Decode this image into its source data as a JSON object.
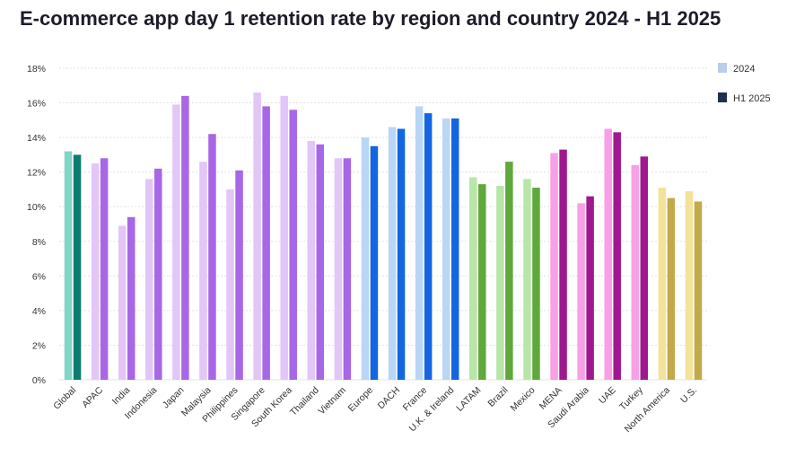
{
  "title": "E-commerce app day 1 retention rate by region and country 2024 - H1 2025",
  "chart_data": {
    "type": "bar",
    "title": "E-commerce app day 1 retention rate by region and country 2024 - H1 2025",
    "xlabel": "",
    "ylabel": "",
    "ylim": [
      0,
      18
    ],
    "yticks": [
      "0%",
      "2%",
      "4%",
      "6%",
      "8%",
      "10%",
      "12%",
      "14%",
      "16%",
      "18%"
    ],
    "grid": true,
    "legend_position": "top-right",
    "categories": [
      "Global",
      "APAC",
      "India",
      "Indonesia",
      "Japan",
      "Malaysia",
      "Philippines",
      "Singapore",
      "South Korea",
      "Thailand",
      "Vietnam",
      "Europe",
      "DACH",
      "France",
      "U.K. & Ireland",
      "LATAM",
      "Brazil",
      "Mexico",
      "MENA",
      "Saudi Arabia",
      "UAE",
      "Turkey",
      "North America",
      "U.S."
    ],
    "series": [
      {
        "name": "2024",
        "values": [
          13.2,
          12.5,
          8.9,
          11.6,
          15.9,
          12.6,
          11.0,
          16.6,
          16.4,
          13.8,
          12.8,
          14.0,
          14.6,
          15.8,
          15.1,
          11.7,
          11.2,
          11.6,
          13.1,
          10.2,
          14.5,
          12.4,
          11.1,
          10.9
        ]
      },
      {
        "name": "H1 2025",
        "values": [
          13.0,
          12.8,
          9.4,
          12.2,
          16.4,
          14.2,
          12.1,
          15.8,
          15.6,
          13.6,
          12.8,
          13.5,
          14.5,
          15.4,
          15.1,
          11.3,
          12.6,
          11.1,
          13.3,
          10.6,
          14.3,
          12.9,
          10.5,
          10.3
        ]
      }
    ],
    "colors": {
      "2024": [
        "#7fd6c6",
        "#e2c6f7",
        "#e2c6f7",
        "#e2c6f7",
        "#e2c6f7",
        "#e2c6f7",
        "#e2c6f7",
        "#e2c6f7",
        "#e2c6f7",
        "#e2c6f7",
        "#e2c6f7",
        "#b9d6f5",
        "#b9d6f5",
        "#b9d6f5",
        "#b9d6f5",
        "#b7e6a6",
        "#b7e6a6",
        "#b7e6a6",
        "#f7a0e6",
        "#f7a0e6",
        "#f7a0e6",
        "#f7a0e6",
        "#f3e39a",
        "#f3e39a"
      ],
      "H1 2025": [
        "#0d7c70",
        "#a867e6",
        "#a867e6",
        "#a867e6",
        "#a867e6",
        "#a867e6",
        "#a867e6",
        "#a867e6",
        "#a867e6",
        "#a867e6",
        "#a867e6",
        "#1466e0",
        "#1466e0",
        "#1466e0",
        "#1466e0",
        "#5fa83c",
        "#5fa83c",
        "#5fa83c",
        "#a0188f",
        "#a0188f",
        "#a0188f",
        "#a0188f",
        "#c2aa4a",
        "#c2aa4a"
      ],
      "legend_2024": "#b9cdea",
      "legend_h1_2025": "#1f2f52",
      "grid": "#e3e3e3"
    }
  }
}
